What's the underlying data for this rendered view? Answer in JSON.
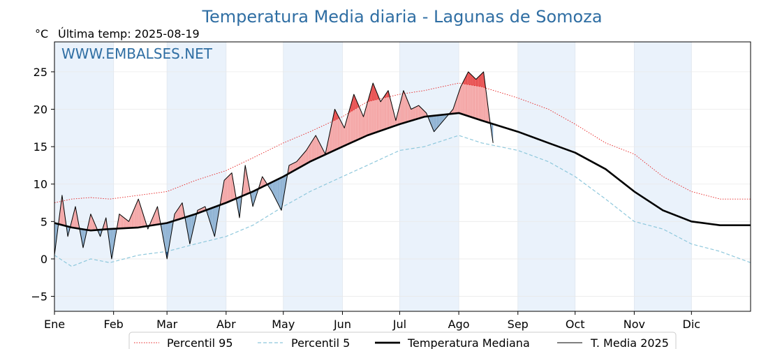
{
  "chart_data": {
    "type": "line",
    "title": "Temperatura Media diaria - Lagunas de Somoza",
    "unit_label": "°C",
    "subtitle": "Última temp: 2025-08-19",
    "watermark": "WWW.EMBALSES.NET",
    "x_ticks": [
      "Ene",
      "Feb",
      "Mar",
      "Abr",
      "May",
      "Jun",
      "Jul",
      "Ago",
      "Sep",
      "Oct",
      "Nov",
      "Dic"
    ],
    "x_tick_days": [
      1,
      32,
      60,
      91,
      121,
      152,
      182,
      213,
      244,
      274,
      305,
      335
    ],
    "xlim": [
      1,
      366
    ],
    "ylim": [
      -7,
      29
    ],
    "y_ticks": [
      -5,
      0,
      5,
      10,
      15,
      20,
      25
    ],
    "grid": true,
    "legend_position": "bottom-center",
    "colors": {
      "title": "#2f6ea3",
      "p95": "#e62020",
      "p5": "#8ec8dc",
      "median": "#000000",
      "current": "#000000",
      "above_fill": "#f4a6a6",
      "above_strong": "#e85050",
      "below_fill": "#8fb3d4",
      "below_strong": "#2b5f9a",
      "month_band": "#eaf2fb"
    },
    "series": [
      {
        "name": "Percentil 95",
        "style": "dotted",
        "x": [
          1,
          10,
          20,
          30,
          45,
          60,
          75,
          91,
          105,
          121,
          135,
          152,
          165,
          182,
          195,
          213,
          225,
          244,
          260,
          274,
          290,
          305,
          320,
          335,
          350,
          366
        ],
        "y": [
          7.5,
          8.0,
          8.2,
          8.0,
          8.5,
          9.0,
          10.5,
          11.8,
          13.5,
          15.5,
          17.0,
          19.0,
          21.0,
          22.0,
          22.5,
          23.5,
          23.0,
          21.5,
          20.0,
          18.0,
          15.5,
          14.0,
          11.0,
          9.0,
          8.0,
          8.0
        ]
      },
      {
        "name": "Percentil 5",
        "style": "dashed",
        "x": [
          1,
          10,
          20,
          30,
          45,
          60,
          75,
          91,
          105,
          121,
          135,
          152,
          165,
          182,
          195,
          213,
          225,
          244,
          260,
          274,
          290,
          305,
          320,
          335,
          350,
          366
        ],
        "y": [
          0.5,
          -1.0,
          0.0,
          -0.5,
          0.5,
          1.0,
          2.0,
          3.0,
          4.5,
          7.0,
          9.0,
          11.0,
          12.5,
          14.5,
          15.0,
          16.5,
          15.5,
          14.5,
          13.0,
          11.0,
          8.0,
          5.0,
          4.0,
          2.0,
          1.0,
          -0.5
        ]
      },
      {
        "name": "Temperatura Mediana",
        "style": "solid-thick",
        "x": [
          1,
          10,
          20,
          30,
          45,
          60,
          75,
          91,
          105,
          121,
          135,
          152,
          165,
          182,
          195,
          213,
          225,
          244,
          260,
          274,
          290,
          305,
          320,
          335,
          350,
          366
        ],
        "y": [
          4.8,
          4.2,
          3.8,
          4.0,
          4.2,
          4.8,
          6.0,
          7.5,
          9.0,
          11.0,
          13.0,
          15.0,
          16.5,
          18.0,
          19.0,
          19.5,
          18.5,
          17.0,
          15.5,
          14.2,
          12.0,
          9.0,
          6.5,
          5.0,
          4.5,
          4.5
        ]
      },
      {
        "name": "T. Media 2025",
        "style": "solid-thin",
        "x": [
          1,
          5,
          8,
          12,
          16,
          20,
          25,
          28,
          31,
          35,
          40,
          45,
          50,
          55,
          60,
          64,
          68,
          72,
          76,
          80,
          85,
          90,
          94,
          98,
          101,
          105,
          110,
          115,
          120,
          124,
          128,
          133,
          138,
          143,
          148,
          153,
          158,
          163,
          168,
          172,
          176,
          180,
          184,
          188,
          192,
          196,
          200,
          205,
          210,
          214,
          218,
          222,
          226,
          229,
          231
        ],
        "y": [
          0.5,
          8.5,
          3.0,
          7.0,
          1.5,
          6.0,
          3.0,
          5.5,
          0.0,
          6.0,
          5.0,
          8.0,
          4.0,
          7.0,
          0.0,
          6.0,
          7.5,
          2.0,
          6.5,
          7.0,
          3.0,
          10.5,
          11.5,
          5.5,
          12.5,
          7.0,
          11.0,
          9.0,
          6.5,
          12.5,
          13.0,
          14.5,
          16.5,
          14.0,
          20.0,
          17.5,
          22.0,
          19.0,
          23.5,
          21.0,
          22.5,
          18.5,
          22.5,
          20.0,
          20.5,
          19.5,
          17.0,
          18.5,
          20.0,
          23.0,
          25.0,
          24.0,
          25.0,
          19.0,
          15.5
        ]
      }
    ]
  }
}
